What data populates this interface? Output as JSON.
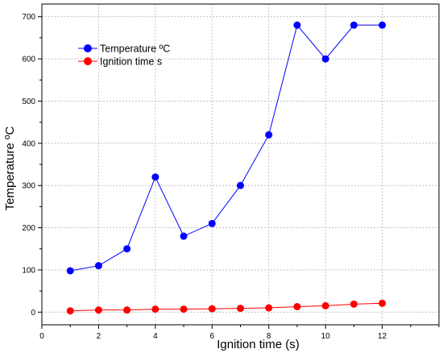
{
  "chart_data": {
    "type": "line",
    "xlabel": "Ignition time (s)",
    "ylabel": "Temperature ºC",
    "xlim": [
      0,
      14
    ],
    "ylim": [
      -30,
      730
    ],
    "x_ticks": [
      0,
      2,
      4,
      6,
      8,
      10,
      12
    ],
    "y_ticks": [
      0,
      100,
      200,
      300,
      400,
      500,
      600,
      700
    ],
    "grid": true,
    "legend_position": "top-left",
    "series": [
      {
        "name": "Temperature ºC",
        "color": "#0000ff",
        "x": [
          1,
          2,
          3,
          4,
          5,
          6,
          7,
          8,
          9,
          10,
          11,
          12
        ],
        "values": [
          98,
          110,
          150,
          320,
          180,
          210,
          300,
          420,
          680,
          600,
          680,
          680
        ]
      },
      {
        "name": "Ignition time s",
        "color": "#ff0000",
        "x": [
          1,
          2,
          3,
          4,
          5,
          6,
          7,
          8,
          9,
          10,
          11,
          12
        ],
        "values": [
          3,
          5,
          5,
          7,
          7,
          8,
          9,
          10,
          13,
          15,
          19,
          21
        ]
      }
    ]
  }
}
